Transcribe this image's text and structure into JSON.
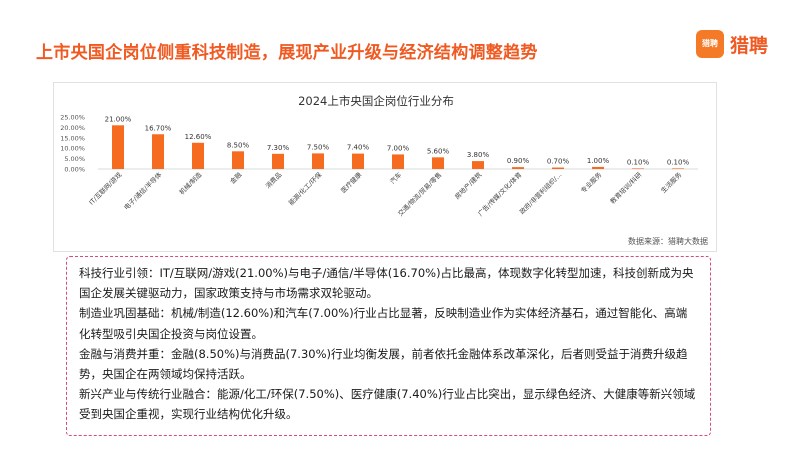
{
  "page": {
    "title": "上市央国企岗位侧重科技制造，展现产业升级与经济结构调整趋势",
    "logo": {
      "mark_text": "猎聘",
      "name": "猎聘"
    }
  },
  "chart": {
    "source": "数据来源：猎聘大数据"
  },
  "colors": {
    "accent": "#f05a22",
    "bar": "#f56b1f",
    "dashed_border": "#d84a78"
  },
  "chart_data": {
    "type": "bar",
    "title": "2024上市央国企岗位行业分布",
    "categories": [
      "IT/互联网/游戏",
      "电子/通信/半导体",
      "机械/制造",
      "金融",
      "消费品",
      "能源/化工/环保",
      "医疗健康",
      "汽车",
      "交通/物流/贸易/零售",
      "房地产/建筑",
      "广告/传媒/文化/体育",
      "政府/非营利组织/...",
      "专业服务",
      "教育培训/科研",
      "生活服务"
    ],
    "values": [
      21.0,
      16.7,
      12.6,
      8.5,
      7.3,
      7.5,
      7.4,
      7.0,
      5.6,
      3.8,
      0.9,
      0.7,
      1.0,
      0.1,
      0.1
    ],
    "data_labels": [
      "21.00%",
      "16.70%",
      "12.60%",
      "8.50%",
      "7.30%",
      "7.50%",
      "7.40%",
      "7.00%",
      "5.60%",
      "3.80%",
      "0.90%",
      "0.70%",
      "1.00%",
      "0.10%",
      "0.10%"
    ],
    "yticks": [
      0,
      5,
      10,
      15,
      20,
      25
    ],
    "ytick_labels": [
      "0.00%",
      "5.00%",
      "10.00%",
      "15.00%",
      "20.00%",
      "25.00%"
    ],
    "ylim": [
      0,
      25
    ],
    "xlabel": "",
    "ylabel": "",
    "grid": false,
    "legend": "none"
  },
  "analysis": [
    "科技行业引领：IT/互联网/游戏(21.00%)与电子/通信/半导体(16.70%)占比最高，体现数字化转型加速，科技创新成为央国企发展关键驱动力，国家政策支持与市场需求双轮驱动。",
    "制造业巩固基础：机械/制造(12.60%)和汽车(7.00%)行业占比显著，反映制造业作为实体经济基石，通过智能化、高端化转型吸引央国企投资与岗位设置。",
    "金融与消费并重：金融(8.50%)与消费品(7.30%)行业均衡发展，前者依托金融体系改革深化，后者则受益于消费升级趋势，央国企在两领域均保持活跃。",
    "新兴产业与传统行业融合：能源/化工/环保(7.50%)、医疗健康(7.40%)行业占比突出，显示绿色经济、大健康等新兴领域受到央国企重视，实现行业结构优化升级。"
  ]
}
